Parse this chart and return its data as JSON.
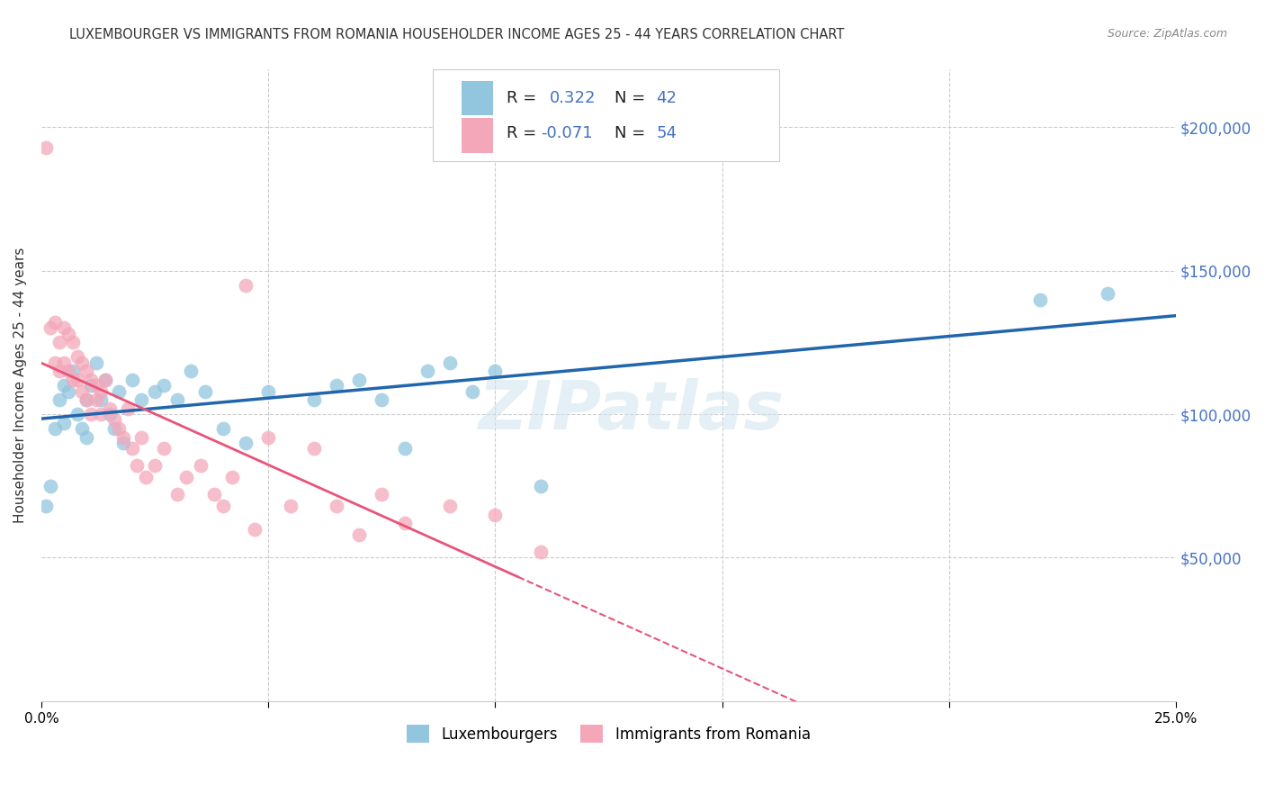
{
  "title": "LUXEMBOURGER VS IMMIGRANTS FROM ROMANIA HOUSEHOLDER INCOME AGES 25 - 44 YEARS CORRELATION CHART",
  "source": "Source: ZipAtlas.com",
  "ylabel": "Householder Income Ages 25 - 44 years",
  "xmin": 0.0,
  "xmax": 0.25,
  "ymin": 0,
  "ymax": 220000,
  "yticks": [
    0,
    50000,
    100000,
    150000,
    200000
  ],
  "ytick_labels": [
    "",
    "$50,000",
    "$100,000",
    "$150,000",
    "$200,000"
  ],
  "blue_color": "#92c5de",
  "pink_color": "#f4a7b9",
  "blue_line_color": "#2166ac",
  "pink_line_color": "#e8547a",
  "watermark": "ZIPatlas",
  "blue_R": 0.322,
  "blue_N": 42,
  "pink_R": -0.071,
  "pink_N": 54,
  "blue_scatter_x": [
    0.001,
    0.002,
    0.003,
    0.004,
    0.005,
    0.005,
    0.006,
    0.007,
    0.008,
    0.009,
    0.01,
    0.01,
    0.011,
    0.012,
    0.013,
    0.014,
    0.015,
    0.016,
    0.017,
    0.018,
    0.02,
    0.022,
    0.025,
    0.027,
    0.03,
    0.033,
    0.036,
    0.04,
    0.045,
    0.05,
    0.06,
    0.065,
    0.07,
    0.075,
    0.08,
    0.085,
    0.09,
    0.095,
    0.1,
    0.11,
    0.22,
    0.235
  ],
  "blue_scatter_y": [
    68000,
    75000,
    95000,
    105000,
    110000,
    97000,
    108000,
    115000,
    100000,
    95000,
    92000,
    105000,
    110000,
    118000,
    105000,
    112000,
    100000,
    95000,
    108000,
    90000,
    112000,
    105000,
    108000,
    110000,
    105000,
    115000,
    108000,
    95000,
    90000,
    108000,
    105000,
    110000,
    112000,
    105000,
    88000,
    115000,
    118000,
    108000,
    115000,
    75000,
    140000,
    142000
  ],
  "pink_scatter_x": [
    0.001,
    0.002,
    0.003,
    0.003,
    0.004,
    0.004,
    0.005,
    0.005,
    0.006,
    0.006,
    0.007,
    0.007,
    0.008,
    0.008,
    0.009,
    0.009,
    0.01,
    0.01,
    0.011,
    0.011,
    0.012,
    0.012,
    0.013,
    0.013,
    0.014,
    0.015,
    0.016,
    0.017,
    0.018,
    0.019,
    0.02,
    0.021,
    0.022,
    0.023,
    0.025,
    0.027,
    0.03,
    0.032,
    0.035,
    0.038,
    0.04,
    0.042,
    0.045,
    0.047,
    0.05,
    0.055,
    0.06,
    0.065,
    0.07,
    0.075,
    0.08,
    0.09,
    0.1,
    0.11
  ],
  "pink_scatter_y": [
    193000,
    130000,
    132000,
    118000,
    125000,
    115000,
    130000,
    118000,
    128000,
    115000,
    125000,
    112000,
    120000,
    112000,
    118000,
    108000,
    115000,
    105000,
    112000,
    100000,
    110000,
    105000,
    100000,
    108000,
    112000,
    102000,
    98000,
    95000,
    92000,
    102000,
    88000,
    82000,
    92000,
    78000,
    82000,
    88000,
    72000,
    78000,
    82000,
    72000,
    68000,
    78000,
    145000,
    60000,
    92000,
    68000,
    88000,
    68000,
    58000,
    72000,
    62000,
    68000,
    65000,
    52000
  ]
}
